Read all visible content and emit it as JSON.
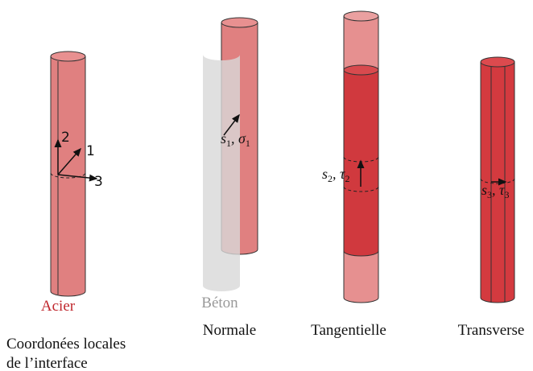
{
  "materials": {
    "steel": "Acier",
    "concrete": "Béton"
  },
  "panels": [
    {
      "caption": [
        "Coordonées locales",
        "de l’interface"
      ],
      "axes": [
        "1",
        "2",
        "3"
      ]
    },
    {
      "caption": "Normale",
      "label": {
        "s": "s",
        "si": "1",
        "sep": ", ",
        "t": "σ",
        "ti": "1"
      }
    },
    {
      "caption": "Tangentielle",
      "label": {
        "s": "s",
        "si": "2",
        "sep": ", ",
        "t": "τ",
        "ti": "2"
      }
    },
    {
      "caption": "Transverse",
      "label": {
        "s": "s",
        "si": "3",
        "sep": ", ",
        "t": "τ",
        "ti": "3"
      }
    }
  ]
}
